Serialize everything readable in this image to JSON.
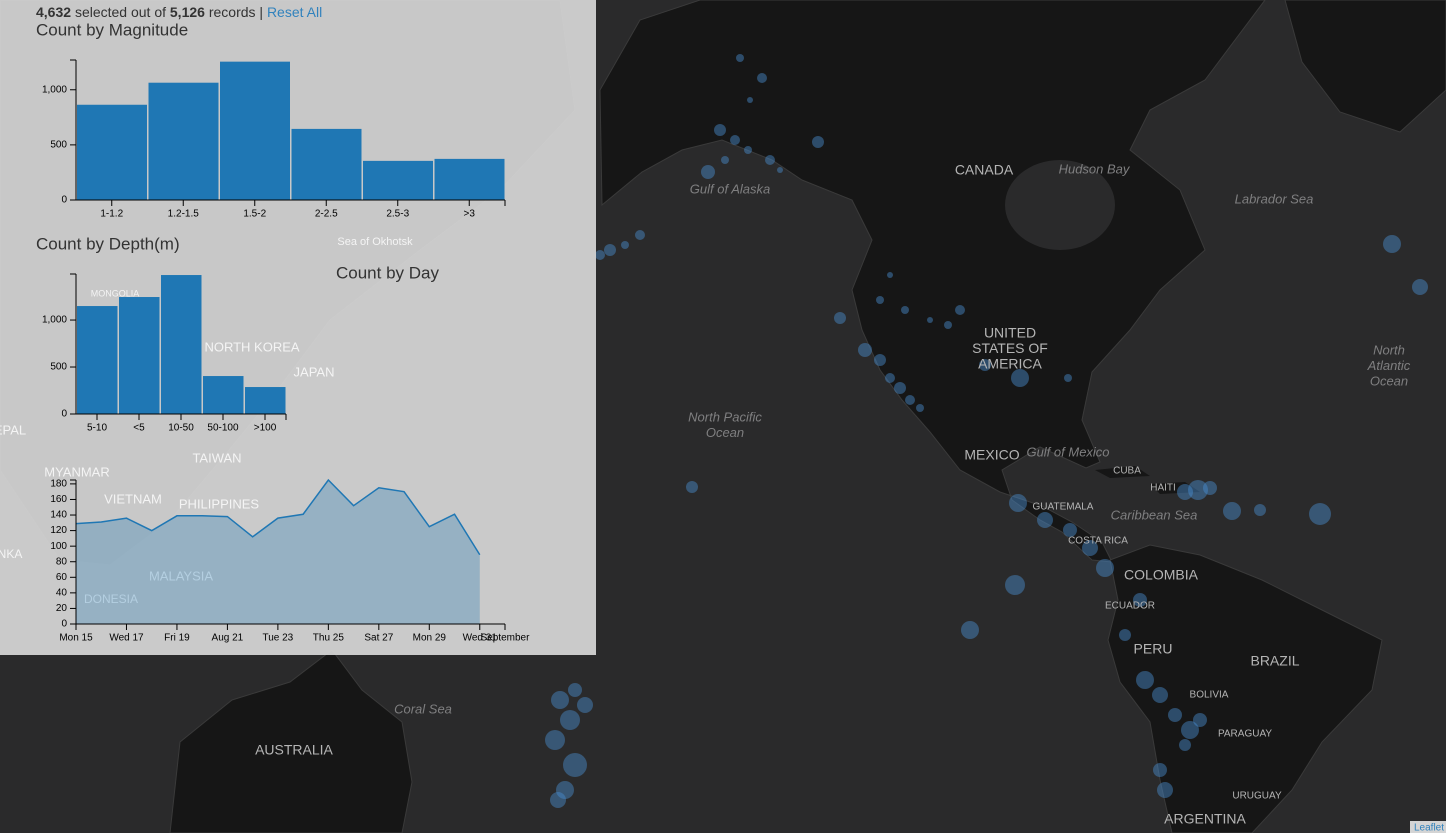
{
  "header": {
    "selected": "4,632",
    "between": "selected out of",
    "total": "5,126",
    "after": "records",
    "separator": "|",
    "reset": "Reset All"
  },
  "chart_data": [
    {
      "type": "bar",
      "title": "Count by Magnitude",
      "color": "#1f77b4",
      "categories": [
        "1-1.2",
        "1.2-1.5",
        "1.5-2",
        "2-2.5",
        "2.5-3",
        ">3"
      ],
      "values": [
        864,
        1064,
        1255,
        645,
        355,
        373
      ],
      "ylim": [
        0,
        1270
      ],
      "yticks": [
        0,
        500,
        {
          "value": 1000,
          "label": "1,000"
        }
      ]
    },
    {
      "type": "bar",
      "title": "Count by Depth(m)",
      "color": "#1f77b4",
      "categories": [
        "5-10",
        "<5",
        "10-50",
        "50-100",
        ">100"
      ],
      "values": [
        1149,
        1245,
        1479,
        404,
        287
      ],
      "ylim": [
        0,
        1490
      ],
      "yticks": [
        0,
        500,
        {
          "value": 1000,
          "label": "1,000"
        }
      ]
    },
    {
      "type": "area",
      "title": "Count by Day",
      "color": "#1f77b4",
      "x": [
        "Aug 15",
        "Aug 16",
        "Aug 17",
        "Aug 18",
        "Aug 19",
        "Aug 20",
        "Aug 21",
        "Aug 22",
        "Aug 23",
        "Aug 24",
        "Aug 25",
        "Aug 26",
        "Aug 27",
        "Aug 28",
        "Aug 29",
        "Aug 30",
        "Aug 31"
      ],
      "values": [
        129,
        131,
        136,
        120,
        139,
        139,
        138,
        112,
        136,
        141,
        185,
        152,
        175,
        170,
        125,
        141,
        89
      ],
      "xlim": [
        "Aug 15",
        "Sep 1"
      ],
      "xticks": [
        {
          "value": "Aug 15",
          "label": "Mon 15"
        },
        {
          "value": "Aug 17",
          "label": "Wed 17"
        },
        {
          "value": "Aug 19",
          "label": "Fri 19"
        },
        {
          "value": "Aug 21",
          "label": "Aug 21"
        },
        {
          "value": "Aug 23",
          "label": "Tue 23"
        },
        {
          "value": "Aug 25",
          "label": "Thu 25"
        },
        {
          "value": "Aug 27",
          "label": "Sat 27"
        },
        {
          "value": "Aug 29",
          "label": "Mon 29"
        },
        {
          "value": "Aug 31",
          "label": "Wed 31"
        },
        {
          "value": "Sep 1",
          "label": "September"
        }
      ],
      "ylim": [
        0,
        185
      ],
      "yticks": [
        0,
        20,
        40,
        60,
        80,
        100,
        120,
        140,
        160,
        180
      ]
    }
  ],
  "map": {
    "labels": [
      [
        "CANADA"
      ],
      [
        "Hudson Bay"
      ],
      [
        "Labrador Sea"
      ],
      [
        "Gulf of Alaska"
      ],
      [
        "UNITED",
        "STATES OF",
        "AMERICA"
      ],
      [
        "North Pacific",
        "Ocean"
      ],
      [
        "MEXICO"
      ],
      [
        "Gulf of Mexico"
      ],
      [
        "CUBA"
      ],
      [
        "HAITI"
      ],
      [
        "GUATEMALA"
      ],
      [
        "Caribbean Sea"
      ],
      [
        "COSTA RICA"
      ],
      [
        "COLOMBIA"
      ],
      [
        "ECUADOR"
      ],
      [
        "PERU"
      ],
      [
        "BRAZIL"
      ],
      [
        "BOLIVIA"
      ],
      [
        "PARAGUAY"
      ],
      [
        "URUGUAY"
      ],
      [
        "ARGENTINA"
      ],
      [
        "North",
        "Atlantic",
        "Ocean"
      ],
      [
        "Coral Sea"
      ],
      [
        "AUSTRALIA"
      ]
    ],
    "under_panel": [
      "MONGOLIA",
      "NORTH KOREA",
      "JAPAN",
      "TAIWAN",
      "MYANMAR",
      "VIETNAM",
      "PHILIPPINES",
      "MALAYSIA",
      "EPAL",
      "NKA",
      "DONESIA",
      "Sea of Okhotsk"
    ],
    "attribution": "Leaflet"
  }
}
